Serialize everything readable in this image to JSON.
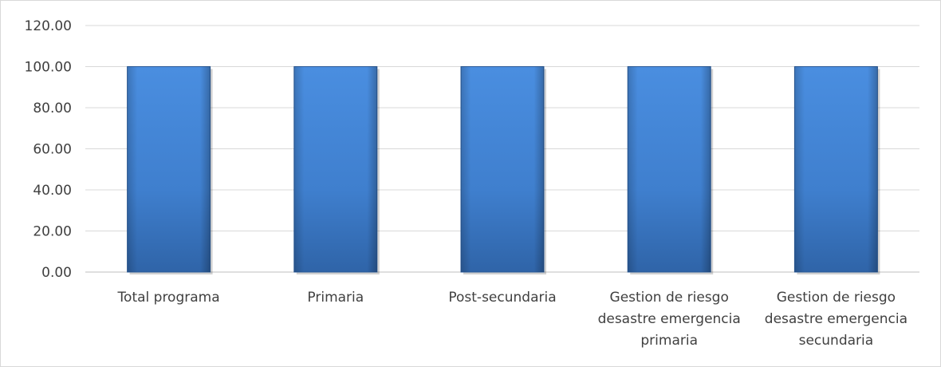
{
  "chart_data": {
    "type": "bar",
    "title": "",
    "xlabel": "",
    "ylabel": "",
    "categories": [
      "Total programa",
      "Primaria",
      "Post-secundaria",
      "Gestion de riesgo desastre emergencia primaria",
      "Gestion de riesgo desastre emergencia secundaria"
    ],
    "category_lines": [
      [
        "Total programa"
      ],
      [
        "Primaria"
      ],
      [
        "Post-secundaria"
      ],
      [
        "Gestion de riesgo",
        "desastre emergencia",
        "primaria"
      ],
      [
        "Gestion de riesgo",
        "desastre emergencia",
        "secundaria"
      ]
    ],
    "values": [
      100,
      100,
      100,
      100,
      100
    ],
    "ylim": [
      0,
      120
    ],
    "yticks": [
      "0.00",
      "20.00",
      "40.00",
      "60.00",
      "80.00",
      "100.00",
      "120.00"
    ],
    "ytick_values": [
      0,
      20,
      40,
      60,
      80,
      100,
      120
    ],
    "grid": true,
    "legend": "none",
    "colors": {
      "bar_light": "#4a8ee0",
      "bar_mid": "#3f7fce",
      "bar_dark": "#2f64a8",
      "grid": "#d9d9d9",
      "axis": "#bfbfbf",
      "text": "#404040"
    }
  }
}
